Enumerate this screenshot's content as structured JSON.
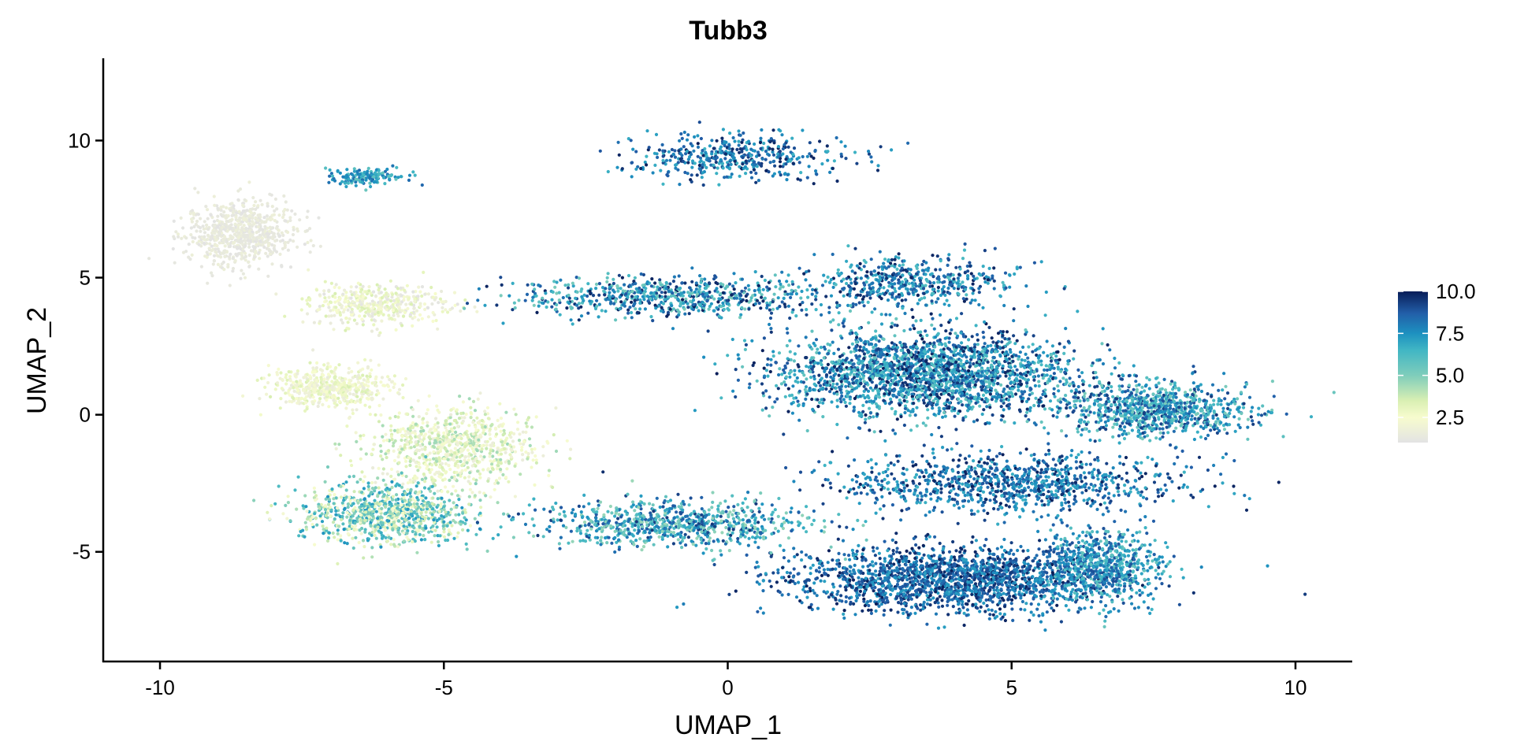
{
  "chart_data": {
    "type": "scatter",
    "title": "Tubb3",
    "xlabel": "UMAP_1",
    "ylabel": "UMAP_2",
    "xlim": [
      -11,
      11
    ],
    "ylim": [
      -9,
      13
    ],
    "x_ticks": [
      -10,
      -5,
      0,
      5,
      10
    ],
    "y_ticks": [
      -5,
      0,
      5,
      10
    ],
    "x_tick_labels": [
      "-10",
      "-5",
      "0",
      "5",
      "10"
    ],
    "y_tick_labels": [
      "-5",
      "0",
      "5",
      "10"
    ],
    "grid": false,
    "legend": {
      "placement": "right",
      "type": "colorbar",
      "range": [
        1,
        10
      ],
      "ticks": [
        2.5,
        5.0,
        7.5,
        10.0
      ],
      "tick_labels": [
        "2.5",
        "5.0",
        "7.5",
        "10.0"
      ]
    },
    "color_scale": {
      "name": "YlGnBu",
      "stops": [
        {
          "value": 1.0,
          "color": "#e3e3e3"
        },
        {
          "value": 2.5,
          "color": "#f7fcce"
        },
        {
          "value": 3.5,
          "color": "#d9efb3"
        },
        {
          "value": 5.0,
          "color": "#7fcdbb"
        },
        {
          "value": 6.5,
          "color": "#41b6c4"
        },
        {
          "value": 7.5,
          "color": "#1d91c0"
        },
        {
          "value": 8.7,
          "color": "#225ea8"
        },
        {
          "value": 10.0,
          "color": "#081d58"
        }
      ]
    },
    "clusters": [
      {
        "label": "top-left-grey-blob",
        "center": [
          -8.6,
          6.6
        ],
        "spread": [
          0.8,
          1.0
        ],
        "n": 700,
        "expr": [
          1.0,
          1.8
        ]
      },
      {
        "label": "top-left-tip",
        "center": [
          -6.4,
          8.7
        ],
        "spread": [
          0.6,
          0.25
        ],
        "n": 160,
        "expr": [
          5.5,
          8.5
        ]
      },
      {
        "label": "upper-yellow-band",
        "center": [
          -6.2,
          4.0
        ],
        "spread": [
          1.0,
          0.6
        ],
        "n": 420,
        "expr": [
          1.0,
          3.5
        ]
      },
      {
        "label": "left-mid-yellow",
        "center": [
          -7.0,
          1.0
        ],
        "spread": [
          0.9,
          0.6
        ],
        "n": 500,
        "expr": [
          1.5,
          3.5
        ]
      },
      {
        "label": "mid-yellow-cloud",
        "center": [
          -4.8,
          -1.2
        ],
        "spread": [
          1.2,
          1.2
        ],
        "n": 800,
        "expr": [
          1.5,
          4.5
        ]
      },
      {
        "label": "bottom-left-mixed",
        "center": [
          -6.0,
          -3.6
        ],
        "spread": [
          1.3,
          0.9
        ],
        "n": 900,
        "expr": [
          2.0,
          7.5
        ]
      },
      {
        "label": "top-streak",
        "center": [
          0.2,
          9.4
        ],
        "spread": [
          1.5,
          0.7
        ],
        "n": 450,
        "expr": [
          6.5,
          10.0
        ]
      },
      {
        "label": "upper-branches",
        "center": [
          -1.0,
          4.3
        ],
        "spread": [
          2.2,
          0.6
        ],
        "n": 700,
        "expr": [
          5.0,
          10.0
        ]
      },
      {
        "label": "upper-right-branch",
        "center": [
          3.2,
          4.8
        ],
        "spread": [
          1.6,
          0.8
        ],
        "n": 500,
        "expr": [
          6.0,
          10.0
        ]
      },
      {
        "label": "central-dense",
        "center": [
          3.5,
          1.5
        ],
        "spread": [
          2.2,
          1.3
        ],
        "n": 2200,
        "expr": [
          5.5,
          10.0
        ]
      },
      {
        "label": "right-arm",
        "center": [
          7.5,
          0.2
        ],
        "spread": [
          1.4,
          0.8
        ],
        "n": 900,
        "expr": [
          5.0,
          9.5
        ]
      },
      {
        "label": "lower-right-arm",
        "center": [
          5.0,
          -2.5
        ],
        "spread": [
          2.5,
          0.9
        ],
        "n": 1000,
        "expr": [
          6.5,
          10.0
        ]
      },
      {
        "label": "bottom-lobe",
        "center": [
          4.0,
          -6.0
        ],
        "spread": [
          2.4,
          1.0
        ],
        "n": 1900,
        "expr": [
          7.0,
          10.0
        ]
      },
      {
        "label": "bottom-right-tip",
        "center": [
          6.6,
          -5.5
        ],
        "spread": [
          0.8,
          1.1
        ],
        "n": 600,
        "expr": [
          5.5,
          9.0
        ]
      },
      {
        "label": "lower-connecting-band",
        "center": [
          -1.0,
          -4.0
        ],
        "spread": [
          2.0,
          0.7
        ],
        "n": 800,
        "expr": [
          4.5,
          9.5
        ]
      }
    ]
  }
}
